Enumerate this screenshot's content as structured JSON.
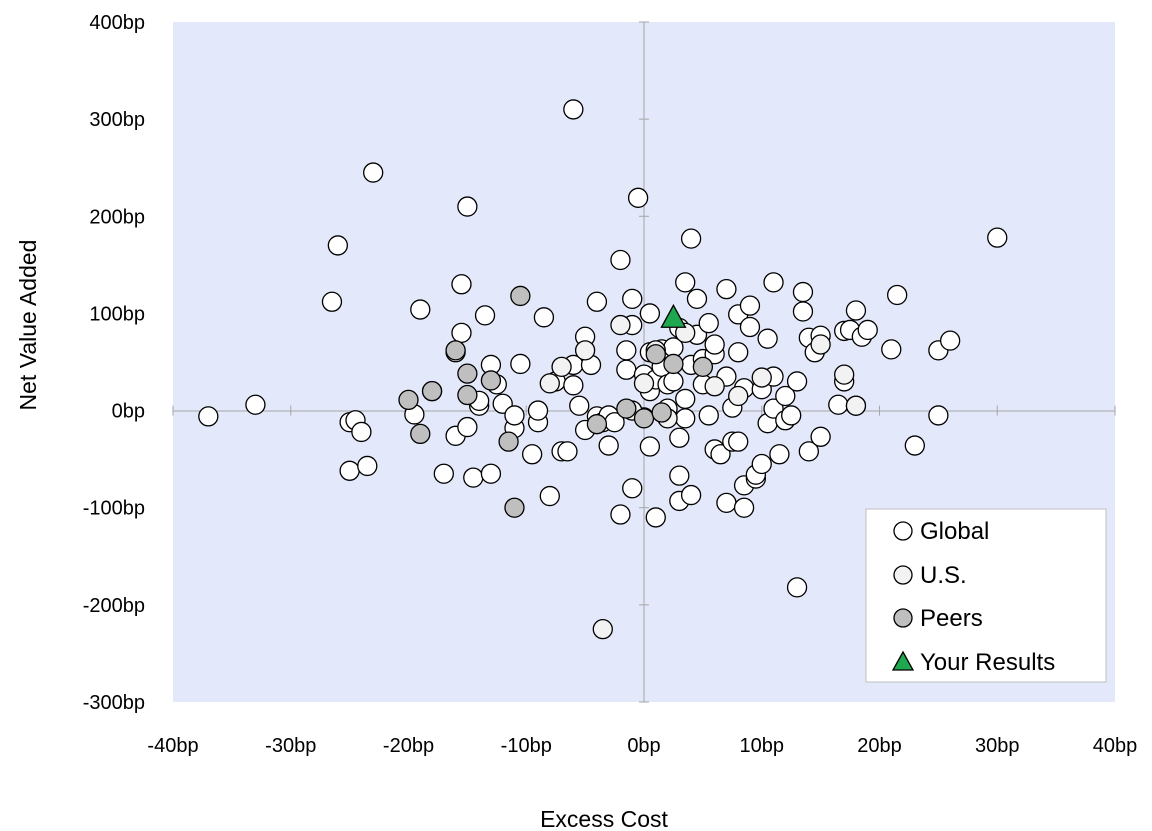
{
  "chart_data": {
    "type": "scatter",
    "xlabel": "Excess Cost",
    "ylabel": "Net Value Added",
    "xlim": [
      -40,
      40
    ],
    "ylim": [
      -300,
      400
    ],
    "x_ticks": [
      "-40bp",
      "-30bp",
      "-20bp",
      "-10bp",
      "0bp",
      "10bp",
      "20bp",
      "30bp",
      "40bp"
    ],
    "y_ticks": [
      "400bp",
      "300bp",
      "200bp",
      "100bp",
      "0bp",
      "-100bp",
      "-200bp",
      "-300bp"
    ],
    "grid": false,
    "legend_position": "bottom-right",
    "colors": {
      "plot_background": "#e3e8fa",
      "global": "#ffffff",
      "us": "#f2f2f2",
      "peers": "#bfbfbf",
      "your_results": "#1fa84f"
    },
    "series": [
      {
        "name": "Global",
        "marker": "circle",
        "points": [
          [
            -37,
            -6
          ],
          [
            -33,
            6
          ],
          [
            -26.5,
            112
          ],
          [
            -26,
            170
          ],
          [
            -25,
            -12
          ],
          [
            -24.5,
            -10
          ],
          [
            -24,
            -22
          ],
          [
            -25,
            -62
          ],
          [
            -23.5,
            -57
          ],
          [
            -23,
            245
          ],
          [
            -19.5,
            -4
          ],
          [
            -19,
            104
          ],
          [
            -18,
            20
          ],
          [
            -17,
            -65
          ],
          [
            -16,
            -26
          ],
          [
            -16,
            60
          ],
          [
            -15.5,
            80
          ],
          [
            -15.5,
            130
          ],
          [
            -15,
            -17
          ],
          [
            -15,
            210
          ],
          [
            -14.5,
            -69
          ],
          [
            -14,
            5
          ],
          [
            -14,
            10
          ],
          [
            -13.5,
            98
          ],
          [
            -13,
            47
          ],
          [
            -13,
            -65
          ],
          [
            -12.5,
            27
          ],
          [
            -12,
            7
          ],
          [
            -11,
            -18
          ],
          [
            -11,
            -5
          ],
          [
            -10.5,
            48
          ],
          [
            -9.5,
            -45
          ],
          [
            -9,
            -12
          ],
          [
            -9,
            0
          ],
          [
            -8.5,
            96
          ],
          [
            -8,
            -88
          ],
          [
            -7.5,
            30
          ],
          [
            -7,
            -42
          ],
          [
            -6.5,
            -42
          ],
          [
            -6,
            310
          ],
          [
            -6,
            47
          ],
          [
            -6,
            26
          ],
          [
            -5.5,
            5
          ],
          [
            -5,
            -20
          ],
          [
            -5,
            76
          ],
          [
            -4.5,
            47
          ],
          [
            -4,
            112
          ],
          [
            -4,
            -6
          ],
          [
            -3.5,
            -12
          ],
          [
            -3,
            -36
          ],
          [
            -3,
            -5
          ],
          [
            -2.5,
            -12
          ],
          [
            -2,
            155
          ],
          [
            -2,
            -107
          ],
          [
            -1.5,
            62
          ],
          [
            -1.5,
            42
          ],
          [
            -1,
            88
          ],
          [
            -1,
            -80
          ],
          [
            -1,
            115
          ],
          [
            -0.5,
            219
          ],
          [
            0,
            -7
          ],
          [
            0,
            37
          ],
          [
            0.5,
            100
          ],
          [
            0.5,
            60
          ],
          [
            0.5,
            -37
          ],
          [
            0.5,
            20
          ],
          [
            1,
            -110
          ],
          [
            1,
            32
          ],
          [
            1.5,
            45
          ],
          [
            1.5,
            63
          ],
          [
            2,
            2
          ],
          [
            2,
            27
          ],
          [
            2.5,
            30
          ],
          [
            2.5,
            65
          ],
          [
            3,
            -28
          ],
          [
            3,
            -67
          ],
          [
            3,
            -93
          ],
          [
            3,
            85
          ],
          [
            3.5,
            132
          ],
          [
            3.5,
            -8
          ],
          [
            3.5,
            12
          ],
          [
            4,
            -87
          ],
          [
            4,
            177
          ],
          [
            4,
            47
          ],
          [
            4.5,
            78
          ],
          [
            4.5,
            115
          ],
          [
            5,
            53
          ],
          [
            5,
            27
          ],
          [
            5.5,
            -5
          ],
          [
            5.5,
            90
          ],
          [
            6,
            -40
          ],
          [
            6,
            58
          ],
          [
            6,
            68
          ],
          [
            6.5,
            -45
          ],
          [
            7,
            125
          ],
          [
            7,
            -95
          ],
          [
            7,
            35
          ],
          [
            7.5,
            -32
          ],
          [
            7.5,
            3
          ],
          [
            8,
            99
          ],
          [
            8,
            60
          ],
          [
            8,
            -32
          ],
          [
            8.5,
            23
          ],
          [
            8.5,
            -77
          ],
          [
            8.5,
            -100
          ],
          [
            9,
            108
          ],
          [
            9,
            86
          ],
          [
            9.5,
            -70
          ],
          [
            9.5,
            -66
          ],
          [
            10,
            -55
          ],
          [
            10,
            22
          ],
          [
            10.5,
            -13
          ],
          [
            10.5,
            74
          ],
          [
            11,
            2
          ],
          [
            11,
            35
          ],
          [
            11,
            132
          ],
          [
            11.5,
            -45
          ],
          [
            12,
            15
          ],
          [
            12,
            -10
          ],
          [
            12.5,
            -5
          ],
          [
            13,
            30
          ],
          [
            13,
            -182
          ],
          [
            13.5,
            122
          ],
          [
            13.5,
            102
          ],
          [
            14,
            75
          ],
          [
            14,
            -42
          ],
          [
            14.5,
            60
          ],
          [
            15,
            -27
          ],
          [
            15,
            77
          ],
          [
            16.5,
            6
          ],
          [
            17,
            30
          ],
          [
            17,
            82
          ],
          [
            17.5,
            83
          ],
          [
            18,
            5
          ],
          [
            18,
            103
          ],
          [
            18.5,
            76
          ],
          [
            19,
            83
          ],
          [
            21,
            63
          ],
          [
            21.5,
            119
          ],
          [
            23,
            -36
          ],
          [
            25,
            -5
          ],
          [
            25,
            62
          ],
          [
            26,
            72
          ],
          [
            30,
            178
          ]
        ]
      },
      {
        "name": "U.S.",
        "marker": "circle",
        "points": [
          [
            -8,
            28
          ],
          [
            -7,
            45
          ],
          [
            -5,
            62
          ],
          [
            -3.5,
            -225
          ],
          [
            -2,
            88
          ],
          [
            -1,
            0
          ],
          [
            0,
            28
          ],
          [
            1,
            62
          ],
          [
            2,
            -8
          ],
          [
            3.5,
            80
          ],
          [
            6,
            25
          ],
          [
            8,
            15
          ],
          [
            10,
            34
          ],
          [
            15,
            68
          ],
          [
            17,
            37
          ],
          [
            18,
            5
          ]
        ]
      },
      {
        "name": "Peers",
        "marker": "circle",
        "points": [
          [
            -20,
            11
          ],
          [
            -19,
            -24
          ],
          [
            -18,
            20
          ],
          [
            -16,
            62
          ],
          [
            -15,
            38
          ],
          [
            -15,
            16
          ],
          [
            -13,
            31
          ],
          [
            -11.5,
            -32
          ],
          [
            -11,
            -100
          ],
          [
            -10.5,
            118
          ],
          [
            -4,
            -14
          ],
          [
            -1.5,
            2
          ],
          [
            0,
            -8
          ],
          [
            1,
            58
          ],
          [
            1.5,
            -2
          ],
          [
            2.5,
            48
          ],
          [
            5,
            45
          ]
        ]
      },
      {
        "name": "Your Results",
        "marker": "triangle",
        "points": [
          [
            2.5,
            95
          ]
        ]
      }
    ]
  }
}
